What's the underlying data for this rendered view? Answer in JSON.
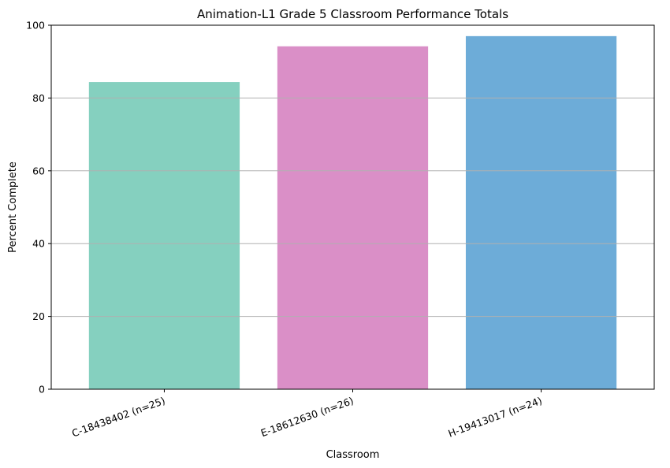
{
  "chart_data": {
    "type": "bar",
    "title": "Animation-L1 Grade 5 Classroom Performance Totals",
    "xlabel": "Classroom",
    "ylabel": "Percent Complete",
    "categories": [
      "C-18438402 (n=25)",
      "E-18612630 (n=26)",
      "H-19413017 (n=24)"
    ],
    "values": [
      84.4,
      94.2,
      97.0
    ],
    "colors": [
      "#85d0bf",
      "#da8fc7",
      "#6dacd8"
    ],
    "ylim": [
      0,
      100
    ],
    "yticks": [
      0,
      20,
      40,
      60,
      80,
      100
    ],
    "grid": "horizontal",
    "grid_color": "#b0b0b0",
    "legend": "none"
  }
}
